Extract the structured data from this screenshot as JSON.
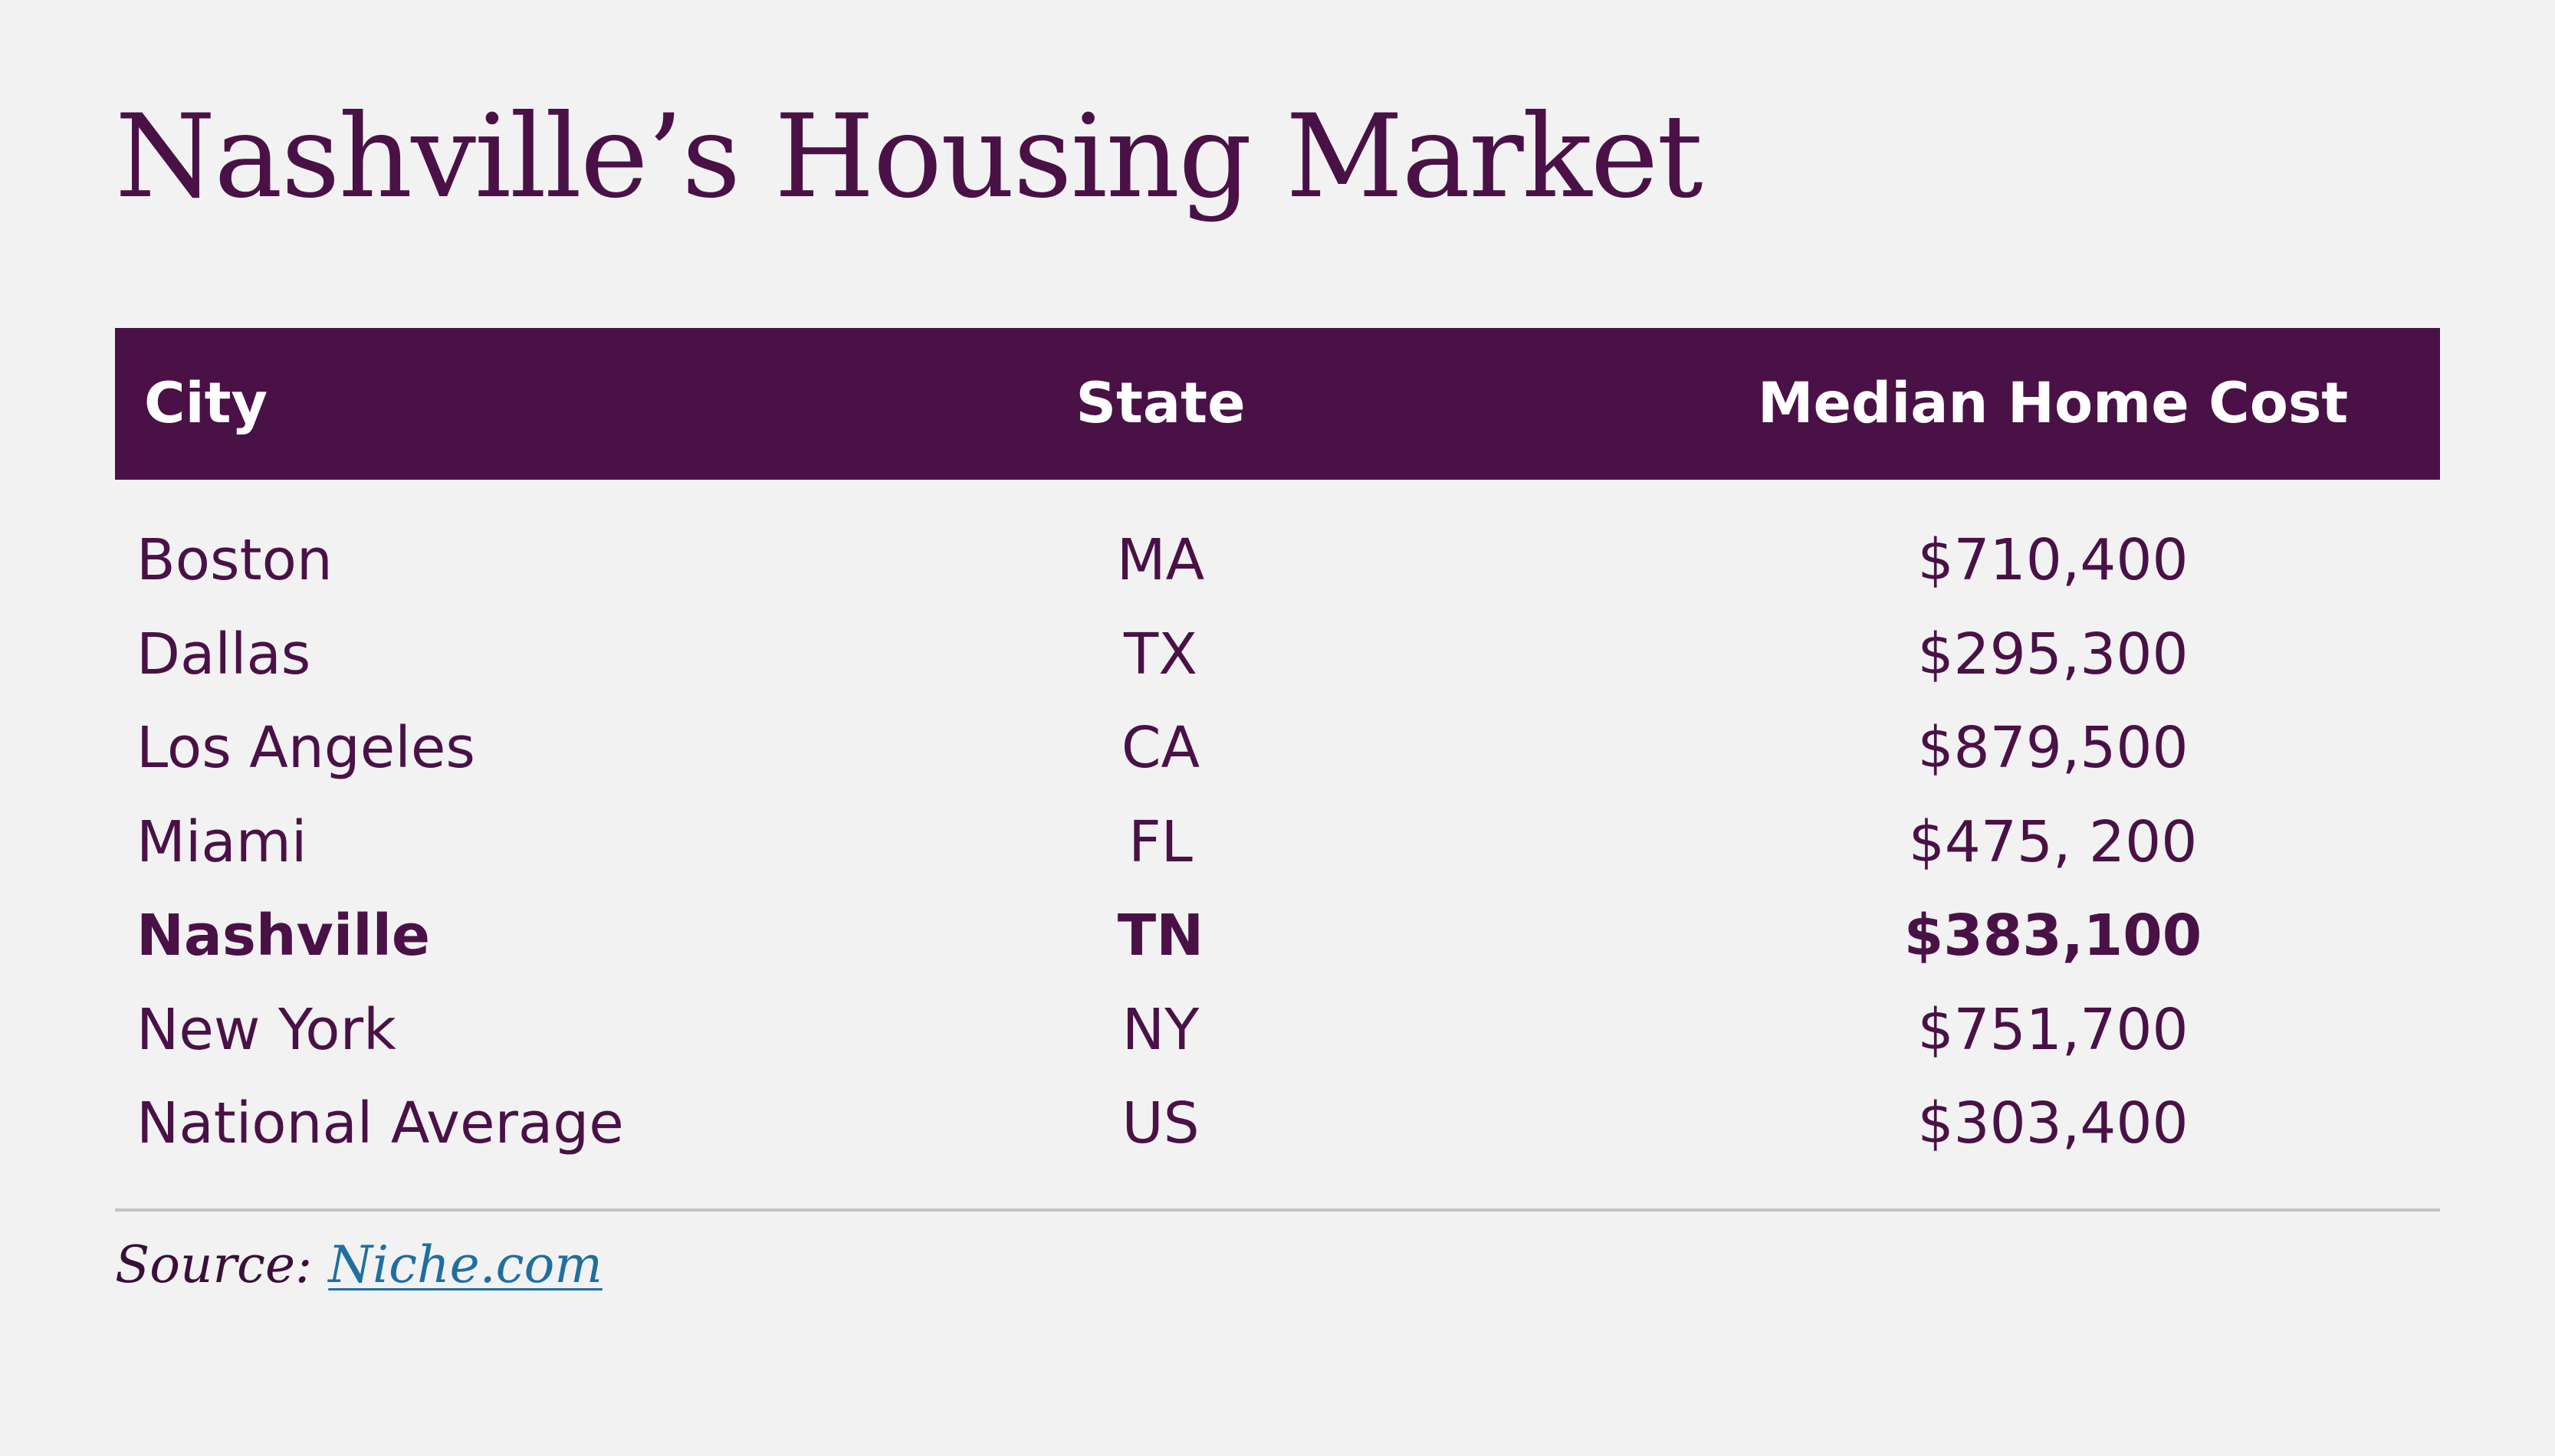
{
  "title": "Nashville’s Housing Market",
  "colors": {
    "brand": "#4a1147",
    "background": "#f2f2f2",
    "header_text": "#ffffff",
    "link": "#1f6f9f"
  },
  "source": {
    "label": "Source:",
    "link_text": "Niche.com"
  },
  "chart_data": {
    "type": "table",
    "title": "Nashville’s Housing Market",
    "columns": [
      "City",
      "State",
      "Median Home Cost"
    ],
    "rows": [
      {
        "city": "Boston",
        "state": "MA",
        "cost": "$710,400",
        "value": 710400,
        "highlight": false
      },
      {
        "city": "Dallas",
        "state": "TX",
        "cost": "$295,300",
        "value": 295300,
        "highlight": false
      },
      {
        "city": "Los Angeles",
        "state": "CA",
        "cost": "$879,500",
        "value": 879500,
        "highlight": false
      },
      {
        "city": "Miami",
        "state": "FL",
        "cost": "$475, 200",
        "value": 475200,
        "highlight": false
      },
      {
        "city": "Nashville",
        "state": "TN",
        "cost": "$383,100",
        "value": 383100,
        "highlight": true
      },
      {
        "city": "New York",
        "state": "NY",
        "cost": "$751,700",
        "value": 751700,
        "highlight": false
      },
      {
        "city": "National Average",
        "state": "US",
        "cost": "$303,400",
        "value": 303400,
        "highlight": false
      }
    ]
  }
}
